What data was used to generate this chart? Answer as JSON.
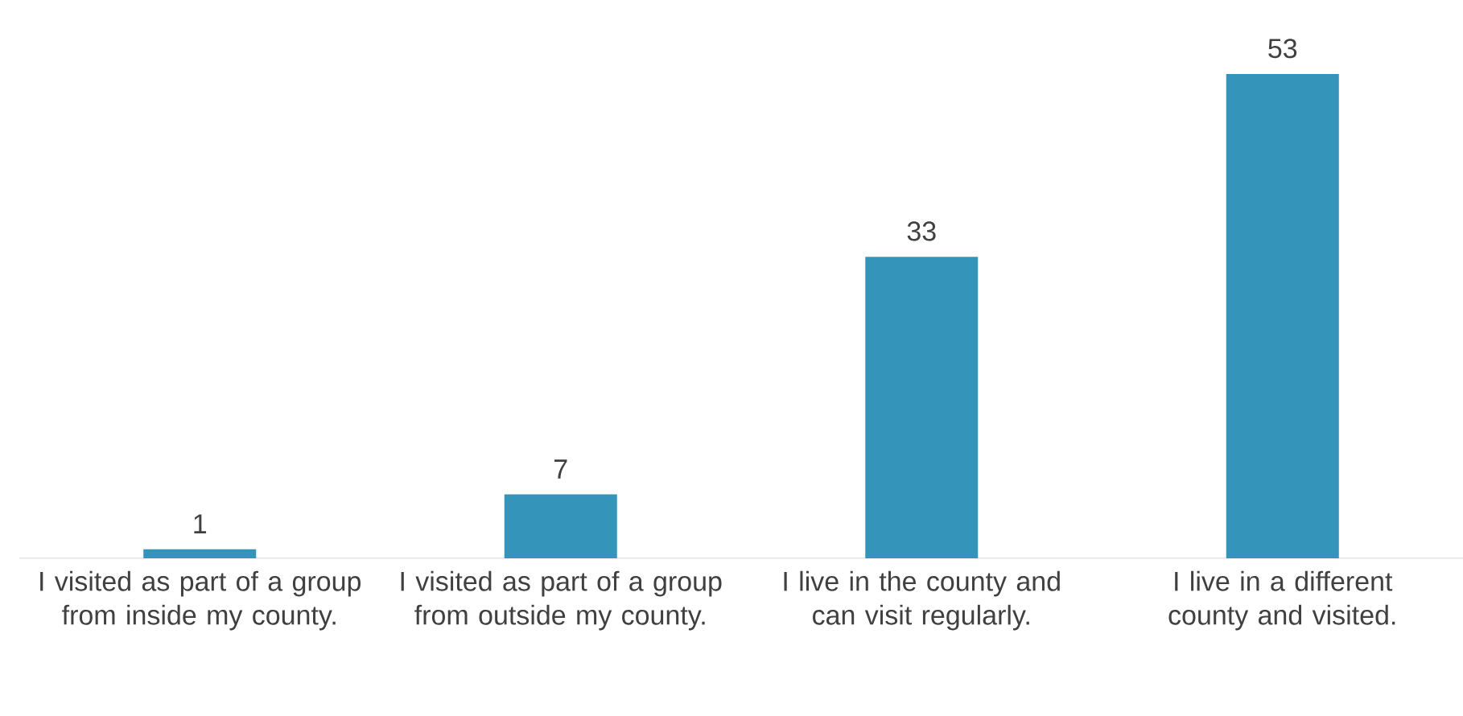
{
  "chart_data": {
    "type": "bar",
    "categories": [
      "I visited as part of a group from inside my county.",
      "I visited as part of a group from outside my county.",
      "I live in the county and can visit regularly.",
      "I live in a different county and visited."
    ],
    "values": [
      1,
      7,
      33,
      53
    ],
    "color": "#3494ba",
    "data_labels": true
  }
}
